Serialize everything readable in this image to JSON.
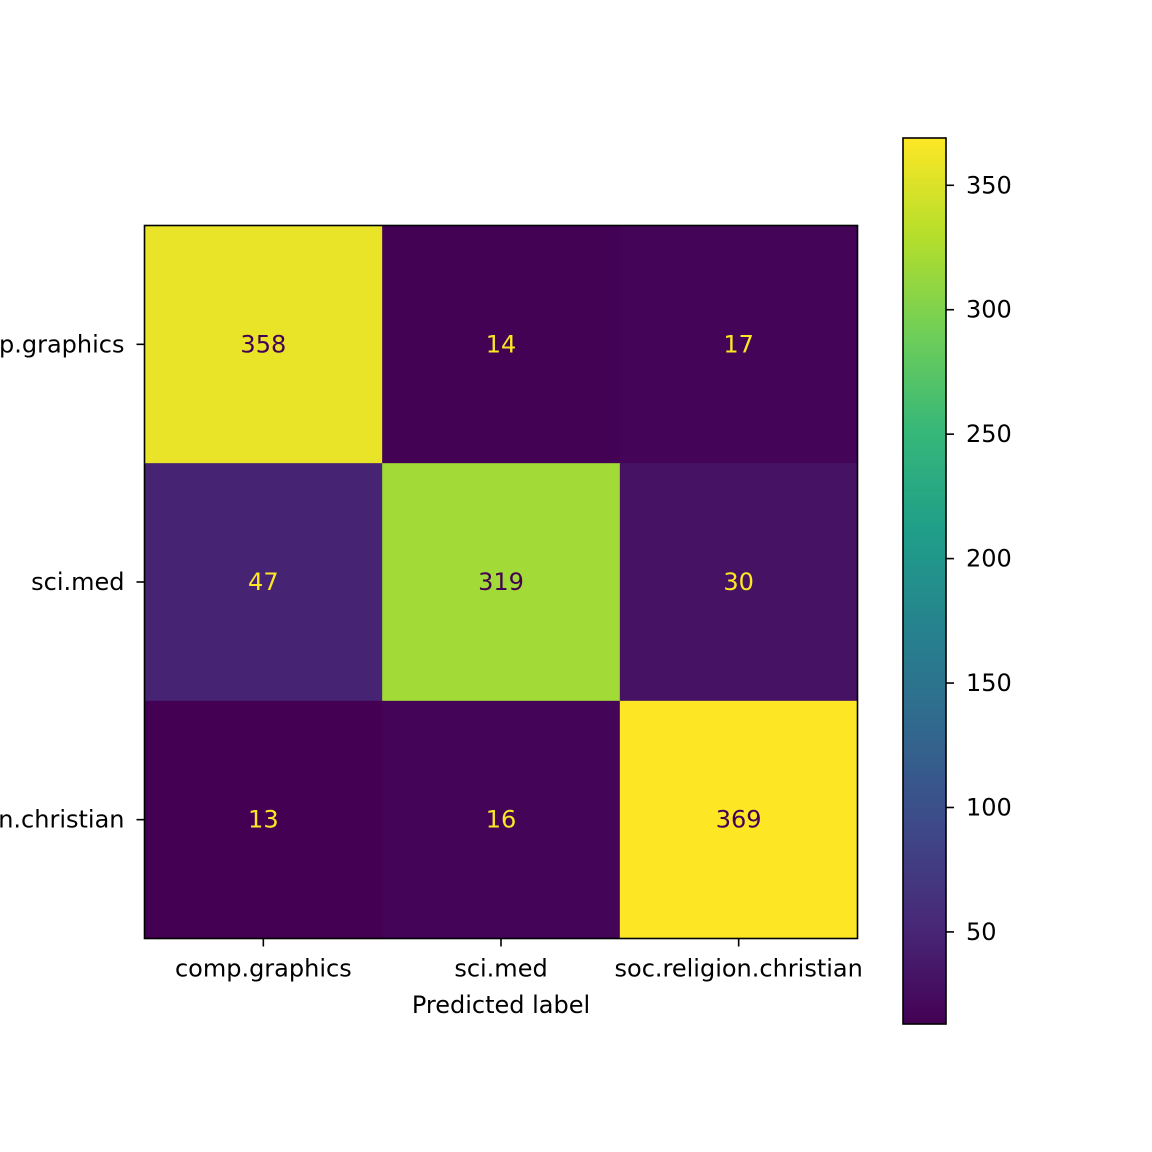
{
  "chart_data": {
    "type": "heatmap",
    "title": "",
    "xlabel": "Predicted label",
    "ylabel": "",
    "x_categories": [
      "comp.graphics",
      "sci.med",
      "soc.religion.christian"
    ],
    "y_categories": [
      "comp.graphics",
      "sci.med",
      "soc.religion.christian"
    ],
    "matrix": [
      [
        358,
        14,
        17
      ],
      [
        47,
        319,
        30
      ],
      [
        13,
        16,
        369
      ]
    ],
    "colormap": "viridis",
    "color_range": [
      13,
      369
    ],
    "colorbar_ticks": [
      50,
      100,
      150,
      200,
      250,
      300,
      350
    ],
    "text_color_dark": "#440154",
    "text_color_light": "#fde725",
    "grid": false
  }
}
